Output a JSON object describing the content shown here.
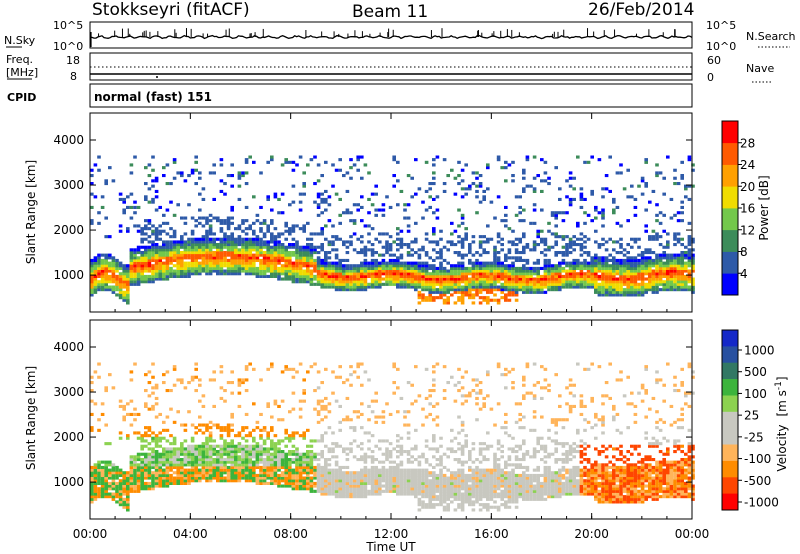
{
  "header": {
    "station": "Stokkseyri (fitACF)",
    "beam": "Beam 11",
    "date": "26/Feb/2014"
  },
  "top_panels": {
    "nsky": {
      "label": "N.Sky",
      "right_label": "N.Search",
      "left_ticks": [
        "10^5",
        "10^0"
      ],
      "right_ticks": [
        "10^5",
        "10^0"
      ]
    },
    "freq": {
      "label_line1": "Freq.",
      "label_line2": "[MHz]",
      "right_label": "Nave",
      "left_ticks": [
        "18",
        "8"
      ],
      "right_ticks": [
        "60",
        "0"
      ]
    },
    "cpid": {
      "label": "CPID",
      "text": "normal (fast) 151"
    }
  },
  "colors": {
    "power_scale": [
      "#0000ff",
      "#2e5aa8",
      "#3c8c5a",
      "#73c84b",
      "#f0dc00",
      "#ffa000",
      "#ff5a00",
      "#ff0000"
    ],
    "velocity_scale": [
      "#ff0000",
      "#ff4600",
      "#ff8c00",
      "#ffb45a",
      "#c8c8c0",
      "#c8c8c0",
      "#8cd250",
      "#3cb43c",
      "#327864",
      "#2850a0",
      "#1428c8"
    ]
  },
  "chart_data": [
    {
      "type": "heatmap",
      "title": "",
      "ylabel": "Slant Range [km]",
      "ylim": [
        180,
        4600
      ],
      "y_ticks": [
        "1000",
        "2000",
        "3000",
        "4000"
      ],
      "x_ticks": [
        "00:00",
        "04:00",
        "08:00",
        "12:00",
        "16:00",
        "20:00",
        "00:00"
      ],
      "xlim_hours": [
        0,
        24
      ],
      "colorbar": {
        "label": "Power [dB]",
        "ticks": [
          "4",
          "8",
          "12",
          "16",
          "20",
          "24",
          "28"
        ]
      }
    },
    {
      "type": "heatmap",
      "title": "",
      "ylabel": "Slant Range [km]",
      "xlabel": "Time UT",
      "ylim": [
        180,
        4600
      ],
      "y_ticks": [
        "1000",
        "2000",
        "3000",
        "4000"
      ],
      "x_ticks": [
        "00:00",
        "04:00",
        "08:00",
        "12:00",
        "16:00",
        "20:00",
        "00:00"
      ],
      "xlim_hours": [
        0,
        24
      ],
      "colorbar": {
        "label_text": "Velocity",
        "label_unit": "[m s",
        "label_exp": "-1",
        "label_close": "]",
        "ticks": [
          "1000",
          "500",
          "100",
          "25",
          "-25",
          "-100",
          "-500",
          "-1000"
        ]
      }
    }
  ]
}
